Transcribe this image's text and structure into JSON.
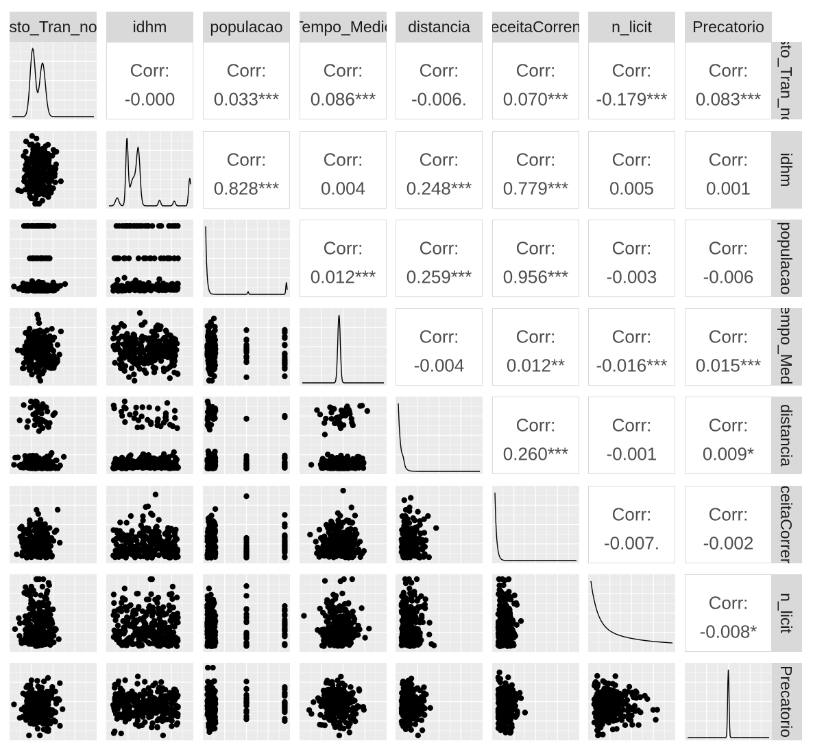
{
  "chart_data": {
    "type": "scatter-matrix",
    "variables": [
      "Gasto_Tran_no",
      "idhm",
      "populacao",
      "Tempo_Medio",
      "distancia",
      "ReceitaCorrente",
      "n_licit",
      "Precatorio"
    ],
    "column_strip_labels": [
      "sto_Tran_no",
      "idhm",
      "populacao",
      "Tempo_Medic",
      "distancia",
      "eceitaCorren",
      "n_licit",
      "Precatorio"
    ],
    "row_strip_labels": [
      "sto_Tran_nc",
      "idhm",
      "populacao",
      "empo_Medi",
      "distancia",
      "ceitaCorrer",
      "n_licit",
      "Precatorio"
    ],
    "corr_prefix": "Corr:",
    "correlations": [
      {
        "row": 0,
        "col": 1,
        "label": "-0.000"
      },
      {
        "row": 0,
        "col": 2,
        "label": "0.033***"
      },
      {
        "row": 0,
        "col": 3,
        "label": "0.086***"
      },
      {
        "row": 0,
        "col": 4,
        "label": "-0.006."
      },
      {
        "row": 0,
        "col": 5,
        "label": "0.070***"
      },
      {
        "row": 0,
        "col": 6,
        "label": "-0.179***"
      },
      {
        "row": 0,
        "col": 7,
        "label": "0.083***"
      },
      {
        "row": 1,
        "col": 2,
        "label": "0.828***"
      },
      {
        "row": 1,
        "col": 3,
        "label": "0.004"
      },
      {
        "row": 1,
        "col": 4,
        "label": "0.248***"
      },
      {
        "row": 1,
        "col": 5,
        "label": "0.779***"
      },
      {
        "row": 1,
        "col": 6,
        "label": "0.005"
      },
      {
        "row": 1,
        "col": 7,
        "label": "0.001"
      },
      {
        "row": 2,
        "col": 3,
        "label": "0.012***"
      },
      {
        "row": 2,
        "col": 4,
        "label": "0.259***"
      },
      {
        "row": 2,
        "col": 5,
        "label": "0.956***"
      },
      {
        "row": 2,
        "col": 6,
        "label": "-0.003"
      },
      {
        "row": 2,
        "col": 7,
        "label": "-0.006"
      },
      {
        "row": 3,
        "col": 4,
        "label": "-0.004"
      },
      {
        "row": 3,
        "col": 5,
        "label": "0.012**"
      },
      {
        "row": 3,
        "col": 6,
        "label": "-0.016***"
      },
      {
        "row": 3,
        "col": 7,
        "label": "0.015***"
      },
      {
        "row": 4,
        "col": 5,
        "label": "0.260***"
      },
      {
        "row": 4,
        "col": 6,
        "label": "-0.001"
      },
      {
        "row": 4,
        "col": 7,
        "label": "0.009*"
      },
      {
        "row": 5,
        "col": 6,
        "label": "-0.007."
      },
      {
        "row": 5,
        "col": 7,
        "label": "-0.002"
      },
      {
        "row": 6,
        "col": 7,
        "label": "-0.008*"
      }
    ],
    "lower_panels": "scatter",
    "diagonal_panels": "density",
    "grid": true,
    "colors": {
      "panel_background": "#ebebeb",
      "grid_line": "#ffffff",
      "strip_background": "#d9d9d9",
      "strip_text": "#1a1a1a",
      "corr_text": "#4d4d4d",
      "point": "#000000",
      "density_line": "#000000"
    }
  }
}
